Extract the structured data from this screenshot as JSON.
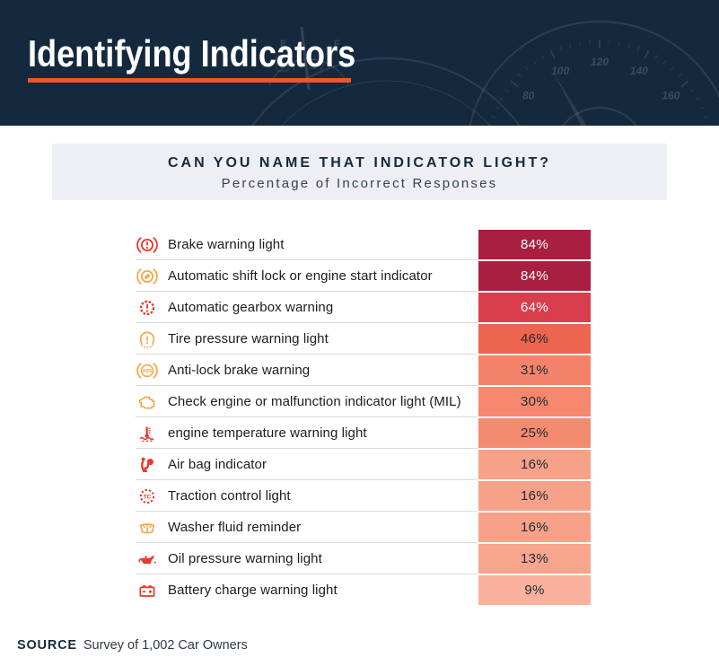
{
  "header": {
    "title": "Identifying Indicators"
  },
  "panel": {
    "title": "CAN YOU NAME THAT INDICATOR LIGHT?",
    "subtitle": "Percentage of Incorrect Responses"
  },
  "chart_data": {
    "type": "bar",
    "title": "CAN YOU NAME THAT INDICATOR LIGHT?",
    "subtitle": "Percentage of Incorrect Responses",
    "unit": "%",
    "value_range": [
      0,
      100
    ],
    "rows": [
      {
        "label": "Brake warning light",
        "value": 84,
        "value_label": "84%",
        "icon": "brake-warning-light-icon",
        "icon_color": "#e8392b",
        "cell_color": "#a81f41",
        "value_text_color": "#ffffff"
      },
      {
        "label": "Automatic shift lock or engine start indicator",
        "value": 84,
        "value_label": "84%",
        "icon": "shift-lock-icon",
        "icon_color": "#f5a94e",
        "cell_color": "#a81f41",
        "value_text_color": "#ffffff"
      },
      {
        "label": "Automatic gearbox warning",
        "value": 64,
        "value_label": "64%",
        "icon": "gearbox-warning-icon",
        "icon_color": "#e8392b",
        "cell_color": "#d93e4c",
        "value_text_color": "#ffffff"
      },
      {
        "label": "Tire pressure warning light",
        "value": 46,
        "value_label": "46%",
        "icon": "tire-pressure-icon",
        "icon_color": "#f5a94e",
        "cell_color": "#ed654f",
        "value_text_color": "#222b35"
      },
      {
        "label": "Anti-lock brake warning",
        "value": 31,
        "value_label": "31%",
        "icon": "abs-warning-icon",
        "icon_color": "#f5a94e",
        "cell_color": "#f3846b",
        "value_text_color": "#222b35"
      },
      {
        "label": "Check engine or malfunction indicator light (MIL)",
        "value": 30,
        "value_label": "30%",
        "icon": "check-engine-icon",
        "icon_color": "#f5a94e",
        "cell_color": "#f4876e",
        "value_text_color": "#222b35"
      },
      {
        "label": "engine temperature warning light",
        "value": 25,
        "value_label": "25%",
        "icon": "engine-temperature-icon",
        "icon_color": "#e8392b",
        "cell_color": "#f48a70",
        "value_text_color": "#222b35"
      },
      {
        "label": "Air bag indicator",
        "value": 16,
        "value_label": "16%",
        "icon": "airbag-icon",
        "icon_color": "#e8392b",
        "cell_color": "#f8a189",
        "value_text_color": "#222b35"
      },
      {
        "label": "Traction control light",
        "value": 16,
        "value_label": "16%",
        "icon": "traction-control-icon",
        "icon_color": "#e8392b",
        "cell_color": "#f8a189",
        "value_text_color": "#222b35"
      },
      {
        "label": "Washer fluid reminder",
        "value": 16,
        "value_label": "16%",
        "icon": "washer-fluid-icon",
        "icon_color": "#f5a94e",
        "cell_color": "#f8a189",
        "value_text_color": "#222b35"
      },
      {
        "label": "Oil pressure warning light",
        "value": 13,
        "value_label": "13%",
        "icon": "oil-pressure-icon",
        "icon_color": "#e8392b",
        "cell_color": "#f8a58d",
        "value_text_color": "#222b35"
      },
      {
        "label": "Battery charge warning light",
        "value": 9,
        "value_label": "9%",
        "icon": "battery-charge-icon",
        "icon_color": "#e8392b",
        "cell_color": "#fab19e",
        "value_text_color": "#222b35"
      }
    ]
  },
  "footer": {
    "source_label": "SOURCE",
    "source_text": "Survey of 1,002 Car Owners"
  },
  "colors": {
    "header_navy": "#14293d",
    "accent_orange": "#f0552b",
    "panel_gray": "#eeeff4",
    "icon_red": "#e8392b",
    "icon_orange": "#f5a94e",
    "scale_dark": "#a81f41",
    "scale_light": "#fab19e"
  }
}
